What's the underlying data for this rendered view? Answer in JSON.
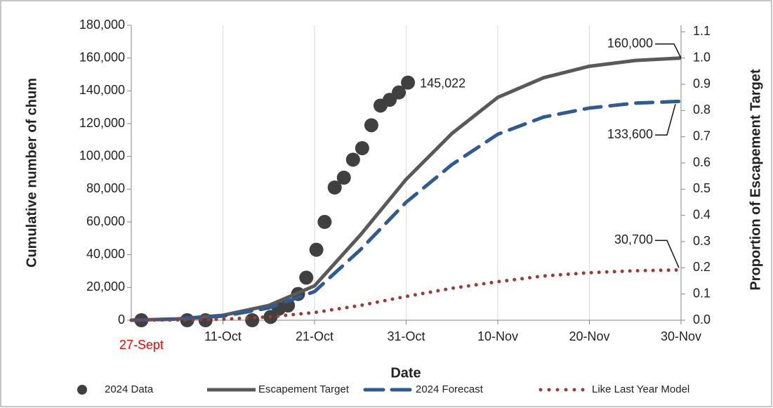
{
  "chart_data": {
    "type": "line",
    "x_label": "Date",
    "y_label": "Cumulative number of chum",
    "y2_label": "Proportion of Escapement Target",
    "xlim": [
      0,
      60
    ],
    "xticks": [
      {
        "value": 10,
        "label": "11-Oct"
      },
      {
        "value": 20,
        "label": "21-Oct"
      },
      {
        "value": 30,
        "label": "31-Oct"
      },
      {
        "value": 40,
        "label": "10-Nov"
      },
      {
        "value": 50,
        "label": "20-Nov"
      },
      {
        "value": 60,
        "label": "30-Nov"
      }
    ],
    "start_label": {
      "text": "27-Sept",
      "x": 1.1,
      "color": "#ff0000"
    },
    "ylim": [
      0,
      180000
    ],
    "yticks": [
      {
        "value": 0,
        "label": "0"
      },
      {
        "value": 20000,
        "label": "20,000"
      },
      {
        "value": 40000,
        "label": "40,000"
      },
      {
        "value": 60000,
        "label": "60,000"
      },
      {
        "value": 80000,
        "label": "80,000"
      },
      {
        "value": 100000,
        "label": "100,000"
      },
      {
        "value": 120000,
        "label": "120,000"
      },
      {
        "value": 140000,
        "label": "140,000"
      },
      {
        "value": 160000,
        "label": "160,000"
      },
      {
        "value": 180000,
        "label": "180,000"
      }
    ],
    "y2lim": [
      0,
      1.125
    ],
    "y2ticks": [
      {
        "value": 0,
        "label": "0.0"
      },
      0.1,
      0.2,
      0.3,
      0.4,
      0.5,
      0.6,
      0.7,
      0.8,
      0.9,
      {
        "value": 1,
        "label": "1.0"
      },
      1.1
    ],
    "grid": "x",
    "legend": "bottom",
    "series": [
      {
        "name": "2024 Data",
        "type": "scatter",
        "color": "#404040",
        "x": [
          1.1,
          6.1,
          8.1,
          13.2,
          15.2,
          16.1,
          17.1,
          18.2,
          19.1,
          20.2,
          21.1,
          22.2,
          23.2,
          24.2,
          25.2,
          26.2,
          27.2,
          28.2,
          29.2,
          30.2
        ],
        "values": [
          0,
          0,
          0,
          0,
          2000,
          7000,
          9000,
          16000,
          26000,
          43000,
          60000,
          81000,
          87000,
          98000,
          105000,
          119000,
          131000,
          134500,
          139000,
          145022
        ],
        "value_labels": [
          null,
          null,
          null,
          null,
          null,
          null,
          null,
          null,
          null,
          null,
          null,
          null,
          null,
          null,
          null,
          null,
          null,
          null,
          null,
          "145,022"
        ]
      },
      {
        "name": "Escapement Target",
        "type": "line",
        "style": "solid",
        "color": "#595959",
        "x": [
          0,
          5,
          10,
          15,
          20,
          25,
          30,
          35,
          40,
          45,
          50,
          55,
          60
        ],
        "values": [
          0,
          800,
          3000,
          9000,
          21000,
          52000,
          86000,
          114000,
          136000,
          148000,
          155000,
          158500,
          160000
        ],
        "value_labels": [
          null,
          null,
          null,
          null,
          null,
          null,
          null,
          null,
          null,
          null,
          null,
          null,
          "160,000"
        ]
      },
      {
        "name": "2024 Forecast",
        "type": "line",
        "style": "dashed",
        "color": "#2f5b8f",
        "x": [
          0,
          5,
          10,
          15,
          20,
          25,
          30,
          35,
          40,
          45,
          50,
          55,
          60
        ],
        "values": [
          0,
          700,
          2500,
          7500,
          17500,
          43000,
          72000,
          95000,
          113500,
          124000,
          129500,
          132500,
          133600
        ],
        "value_labels": [
          null,
          null,
          null,
          null,
          null,
          null,
          null,
          null,
          null,
          null,
          null,
          null,
          "133,600"
        ]
      },
      {
        "name": "Like Last Year Model",
        "type": "line",
        "style": "dotted",
        "color": "#9b3b35",
        "x": [
          0,
          5,
          10,
          15,
          20,
          25,
          30,
          35,
          40,
          45,
          50,
          55,
          60
        ],
        "values": [
          0,
          150,
          600,
          2000,
          4700,
          9000,
          14500,
          19500,
          23500,
          27000,
          29000,
          30200,
          30700
        ],
        "value_labels": [
          null,
          null,
          null,
          null,
          null,
          null,
          null,
          null,
          null,
          null,
          null,
          null,
          "30,700"
        ]
      }
    ]
  }
}
